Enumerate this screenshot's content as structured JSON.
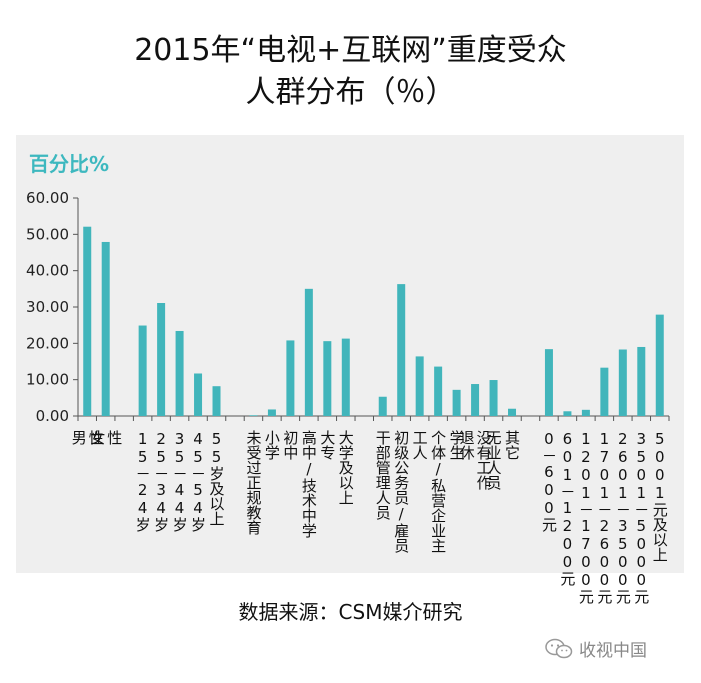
{
  "title_line1": "2015年“电视+互联网”重度受众",
  "title_line2": "人群分布（％）",
  "source": "数据来源：CSM媒介研究",
  "watermark": "收视中国",
  "colors": {
    "bar": "#41b5bb",
    "panel": "#efefef",
    "axis": "#555555"
  },
  "chart_data": {
    "type": "bar",
    "ylabel": "百分比%",
    "ylim": [
      0,
      60
    ],
    "yticks": [
      "0.00",
      "10.00",
      "20.00",
      "30.00",
      "40.00",
      "50.00",
      "60.00"
    ],
    "categories": [
      "男性",
      "女性",
      "15－24岁",
      "25－34岁",
      "35－44岁",
      "45－54岁",
      "55岁及以上",
      "未受过正规教育",
      "小学",
      "初中",
      "高中/技术中学",
      "大专",
      "大学及以上",
      "干部管理人员",
      "初级公务员/雇员",
      "工人",
      "个体/私营企业主",
      "学生",
      "退休没有工作",
      "无业人员",
      "其它",
      "0－600元",
      "601－1200元",
      "1201－1700元",
      "1701－2600元",
      "2601－3500元",
      "3501－5000元",
      "5001元及以上"
    ],
    "category_lines": [
      [
        "男",
        "性"
      ],
      [
        "女",
        "性"
      ],
      [
        "15－24岁"
      ],
      [
        "25－34岁"
      ],
      [
        "35－44岁"
      ],
      [
        "45－54岁"
      ],
      [
        "55岁及以上"
      ],
      [
        "未受过正规教育"
      ],
      [
        "小学"
      ],
      [
        "初中"
      ],
      [
        "高中/技术中学"
      ],
      [
        "大专"
      ],
      [
        "大学及以上"
      ],
      [
        "干部管理人员"
      ],
      [
        "初级公务员/雇员"
      ],
      [
        "工人"
      ],
      [
        "个体/私营企业主"
      ],
      [
        "学生"
      ],
      [
        "退休",
        "没有工作"
      ],
      [
        "无业人员"
      ],
      [
        "其它"
      ],
      [
        "0－600元"
      ],
      [
        "601－1200元"
      ],
      [
        "1201－1700元"
      ],
      [
        "1701－2600元"
      ],
      [
        "2601－3500元"
      ],
      [
        "3501－5000元"
      ],
      [
        "5001元及以上"
      ]
    ],
    "values": [
      52.1,
      47.9,
      24.9,
      31.1,
      23.4,
      11.7,
      8.2,
      0.2,
      1.8,
      20.8,
      35.0,
      20.6,
      21.3,
      5.3,
      36.3,
      16.4,
      13.6,
      7.2,
      8.8,
      9.9,
      2.0,
      18.4,
      1.3,
      1.7,
      13.3,
      18.3,
      19.0,
      27.9
    ],
    "groups": [
      2,
      5,
      6,
      8,
      7
    ],
    "grid": false
  }
}
